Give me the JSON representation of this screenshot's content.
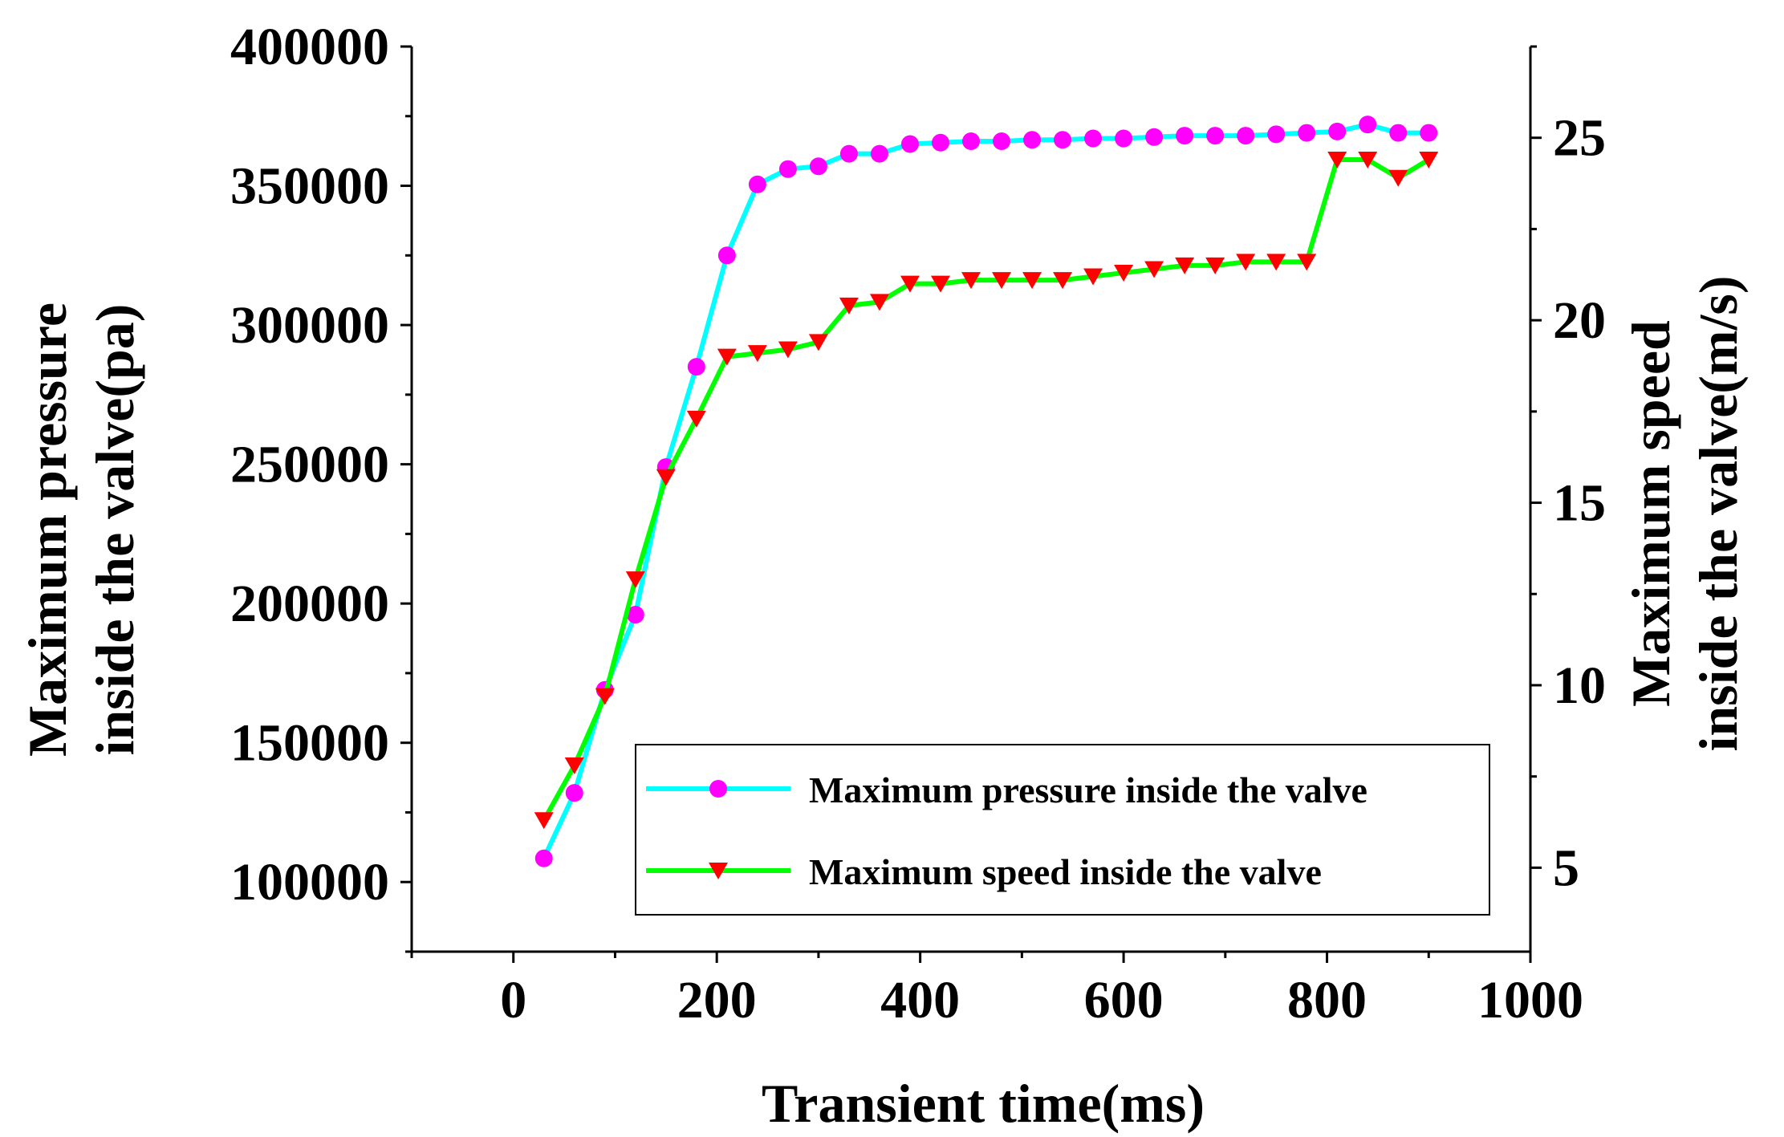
{
  "chart_data": {
    "type": "line",
    "xlabel": "Transient time(ms)",
    "ylabel_left": [
      "Maximum pressure",
      "inside the valve(pa)"
    ],
    "ylabel_right": [
      "Maximum speed",
      "inside the valve(m/s)"
    ],
    "xlim": [
      -100,
      1000
    ],
    "ylim_left": [
      75000,
      400000
    ],
    "ylim_right": [
      2.7,
      27.5
    ],
    "x_ticks": [
      0,
      200,
      400,
      600,
      800,
      1000
    ],
    "y_left_ticks": [
      100000,
      150000,
      200000,
      250000,
      300000,
      350000,
      400000
    ],
    "y_right_ticks": [
      5,
      10,
      15,
      20,
      25
    ],
    "x_tick_labels": [
      "0",
      "200",
      "400",
      "600",
      "800",
      "1000"
    ],
    "y_left_tick_labels": [
      "100000",
      "150000",
      "200000",
      "250000",
      "300000",
      "350000",
      "400000"
    ],
    "y_right_tick_labels": [
      "5",
      "10",
      "15",
      "20",
      "25"
    ],
    "legend_position": "bottom-right",
    "series": [
      {
        "name": "Maximum pressure inside the valve",
        "axis": "left",
        "color": "#00ffff",
        "marker": "circle",
        "marker_color": "#ff00ff",
        "x": [
          30,
          60,
          90,
          120,
          150,
          180,
          210,
          240,
          270,
          300,
          330,
          360,
          390,
          420,
          450,
          480,
          510,
          540,
          570,
          600,
          630,
          660,
          690,
          720,
          750,
          780,
          810,
          840,
          870,
          900
        ],
        "values": [
          108500,
          132000,
          169000,
          196000,
          249000,
          285000,
          325000,
          350500,
          356000,
          357000,
          361500,
          361500,
          365000,
          365500,
          366000,
          366000,
          366500,
          366500,
          367000,
          367000,
          367500,
          368000,
          368000,
          368000,
          368500,
          369000,
          369500,
          372000,
          369000,
          369000
        ]
      },
      {
        "name": "Maximum speed inside the valve",
        "axis": "right",
        "color": "#00ff00",
        "marker": "triangle-down",
        "marker_color": "#ff0000",
        "x": [
          30,
          60,
          90,
          120,
          150,
          180,
          210,
          240,
          270,
          300,
          330,
          360,
          390,
          420,
          450,
          480,
          510,
          540,
          570,
          600,
          630,
          660,
          690,
          720,
          750,
          780,
          810,
          840,
          870,
          900
        ],
        "values": [
          6.3,
          7.8,
          9.7,
          12.9,
          15.7,
          17.3,
          19.0,
          19.1,
          19.2,
          19.4,
          20.4,
          20.5,
          21.0,
          21.0,
          21.1,
          21.1,
          21.1,
          21.1,
          21.2,
          21.3,
          21.4,
          21.5,
          21.5,
          21.6,
          21.6,
          21.6,
          24.4,
          24.4,
          23.9,
          24.4
        ]
      }
    ]
  }
}
